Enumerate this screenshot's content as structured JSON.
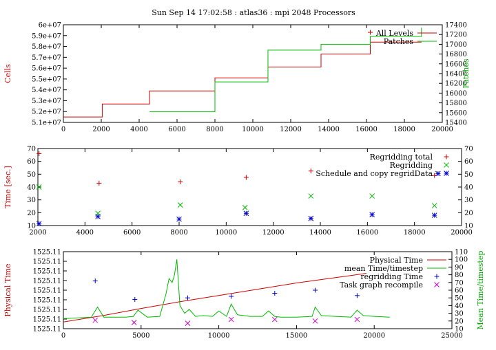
{
  "title": "Sun Sep 14 17:02:58 : atlas36 : mpi 2048 Processors",
  "chart_data": [
    {
      "type": "line",
      "ylabel": "Cells",
      "y2label": "Patches",
      "xlim": [
        0,
        20000
      ],
      "ylim": [
        51000000,
        60000000
      ],
      "y2lim": [
        15400,
        17400
      ],
      "x_ticks": [
        "0",
        "2000",
        "4000",
        "6000",
        "8000",
        "10000",
        "12000",
        "14000",
        "16000",
        "18000",
        "20000"
      ],
      "y_ticks": [
        "5.1e+07",
        "5.2e+07",
        "5.3e+07",
        "5.4e+07",
        "5.5e+07",
        "5.6e+07",
        "5.7e+07",
        "5.8e+07",
        "5.9e+07",
        "6e+07"
      ],
      "y2_ticks": [
        "15400",
        "15600",
        "15800",
        "16000",
        "16200",
        "16400",
        "16600",
        "16800",
        "17000",
        "17200",
        "17400"
      ],
      "legend_position": "top-right",
      "series": [
        {
          "name": "All Levels",
          "axis": "left",
          "color": "#cc0000",
          "step": [
            [
              0,
              51500000
            ],
            [
              2050,
              51500000
            ],
            [
              2050,
              52700000
            ],
            [
              4550,
              52700000
            ],
            [
              4550,
              53900000
            ],
            [
              8000,
              53900000
            ],
            [
              8000,
              55100000
            ],
            [
              10800,
              55100000
            ],
            [
              10800,
              56100000
            ],
            [
              13600,
              56100000
            ],
            [
              13600,
              57300000
            ],
            [
              16200,
              57300000
            ],
            [
              16200,
              58400000
            ],
            [
              18900,
              58400000
            ]
          ],
          "points": [
            [
              16200,
              59300000
            ]
          ]
        },
        {
          "name": "Patches",
          "axis": "right",
          "color": "#00bb00",
          "step": [
            [
              4550,
              15620
            ],
            [
              8000,
              15620
            ],
            [
              8000,
              16230
            ],
            [
              10800,
              16230
            ],
            [
              10800,
              16880
            ],
            [
              13600,
              16880
            ],
            [
              13600,
              17000
            ],
            [
              16200,
              17000
            ],
            [
              16200,
              17160
            ],
            [
              18900,
              17160
            ],
            [
              18900,
              17340
            ]
          ]
        }
      ]
    },
    {
      "type": "scatter",
      "ylabel": "Time [sec.]",
      "xlim": [
        2000,
        20000
      ],
      "ylim": [
        10,
        70
      ],
      "y2lim": [
        10,
        70
      ],
      "x_ticks": [
        "2000",
        "4000",
        "6000",
        "8000",
        "10000",
        "12000",
        "14000",
        "16000",
        "18000",
        "20000"
      ],
      "y_ticks": [
        "10",
        "20",
        "30",
        "40",
        "50",
        "60",
        "70"
      ],
      "y2_ticks": [
        "10",
        "20",
        "30",
        "40",
        "50",
        "60",
        "70"
      ],
      "legend_position": "top-right",
      "series": [
        {
          "name": "Regridding total",
          "marker": "plus",
          "color": "#cc0000",
          "points": [
            [
              2050,
              66
            ],
            [
              4600,
              43
            ],
            [
              8050,
              44
            ],
            [
              10850,
              47.5
            ],
            [
              13600,
              52.5
            ],
            [
              18850,
              49
            ]
          ]
        },
        {
          "name": "Regridding",
          "marker": "x",
          "color": "#00bb00",
          "points": [
            [
              2050,
              40
            ],
            [
              4550,
              19.5
            ],
            [
              8050,
              26
            ],
            [
              10800,
              24
            ],
            [
              13600,
              33
            ],
            [
              16200,
              33
            ],
            [
              18850,
              25.5
            ]
          ]
        },
        {
          "name": "Schedule and copy regridData",
          "marker": "star",
          "color": "#0000cc",
          "points": [
            [
              2050,
              11.5
            ],
            [
              4550,
              17
            ],
            [
              8000,
              15
            ],
            [
              10850,
              19.5
            ],
            [
              13600,
              15.5
            ],
            [
              16200,
              18.5
            ],
            [
              18850,
              18
            ],
            [
              19000,
              50.5
            ]
          ]
        }
      ]
    },
    {
      "type": "line",
      "ylabel": "Physical Time",
      "y2label": "Mean Time/timestep",
      "xlim": [
        0,
        25000
      ],
      "ylim": [
        0,
        8
      ],
      "y2lim": [
        10,
        110
      ],
      "x_ticks": [
        "0",
        "5000",
        "10000",
        "15000",
        "20000",
        "25000"
      ],
      "y_ticks": [
        "1525.11",
        "1525.11",
        "1525.11",
        "1525.11",
        "1525.11",
        "1525.11",
        "1525.11",
        "1525.11",
        "1525.11"
      ],
      "y2_ticks": [
        "10",
        "20",
        "30",
        "40",
        "50",
        "60",
        "70",
        "80",
        "90",
        "100",
        "110"
      ],
      "legend_position": "top-right",
      "series": [
        {
          "name": "Physical Time",
          "axis": "left",
          "color": "#cc0000",
          "x": [
            0,
            2500,
            5000,
            7500,
            10000,
            12500,
            15000,
            17500,
            19500
          ],
          "values": [
            0.7,
            1.35,
            2.1,
            2.8,
            3.45,
            4.1,
            4.75,
            5.3,
            5.75
          ]
        },
        {
          "name": "mean Time/timestep",
          "axis": "right",
          "color": "#00bb00",
          "x": [
            0,
            1800,
            2200,
            2600,
            4000,
            4500,
            4800,
            5400,
            6200,
            6600,
            6800,
            7000,
            7150,
            7300,
            7500,
            7800,
            8100,
            8500,
            9000,
            9600,
            10000,
            10500,
            10800,
            11200,
            12000,
            12800,
            13200,
            13600,
            14000,
            15000,
            16000,
            16200,
            16600,
            17500,
            18500,
            18900,
            19300,
            20000,
            21000
          ],
          "values": [
            23,
            25,
            38,
            25,
            25,
            26,
            34,
            25,
            26,
            55,
            75,
            70,
            80,
            100,
            40,
            30,
            35,
            26,
            27,
            26,
            33,
            26,
            42,
            28,
            26,
            26,
            33,
            26,
            25,
            25,
            26,
            38,
            27,
            26,
            25,
            34,
            27,
            26,
            25
          ]
        },
        {
          "name": "regridding Time",
          "marker": "plus",
          "axis": "right",
          "color": "#0000cc",
          "points": [
            [
              2050,
              72
            ],
            [
              4600,
              48
            ],
            [
              8000,
              50
            ],
            [
              10800,
              52
            ],
            [
              13600,
              56
            ],
            [
              16200,
              60
            ],
            [
              18900,
              53
            ]
          ]
        },
        {
          "name": "Task graph recompile",
          "marker": "x",
          "axis": "right",
          "color": "#cc00cc",
          "points": [
            [
              2050,
              21
            ],
            [
              4550,
              18
            ],
            [
              8000,
              17
            ],
            [
              10800,
              22
            ],
            [
              13600,
              22
            ],
            [
              16200,
              20
            ],
            [
              18900,
              22
            ]
          ]
        }
      ]
    }
  ]
}
